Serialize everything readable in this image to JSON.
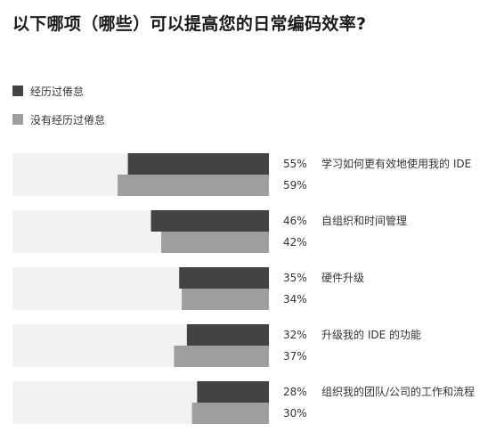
{
  "chart_data": {
    "type": "bar",
    "orientation": "horizontal",
    "title": "以下哪项（哪些）可以提高您的日常编码效率?",
    "categories": [
      "学习如何更有效地使用我的 IDE",
      "自组织和时间管理",
      "硬件升级",
      "升级我的 IDE 的功能",
      "组织我的团队/公司的工作和流程"
    ],
    "series": [
      {
        "name": "经历过倦怠",
        "values": [
          55,
          46,
          35,
          32,
          28
        ],
        "labels": [
          "55%",
          "46%",
          "35%",
          "32%",
          "28%"
        ],
        "color": "#434345"
      },
      {
        "name": "没有经历过倦怠",
        "values": [
          59,
          42,
          34,
          37,
          30
        ],
        "labels": [
          "59%",
          "42%",
          "34%",
          "37%",
          "30%"
        ],
        "color": "#9e9e9e"
      }
    ],
    "xlim": [
      0,
      100
    ],
    "background_track_color": "#f2f2f2",
    "legend_position": "top-left",
    "grid": false
  }
}
